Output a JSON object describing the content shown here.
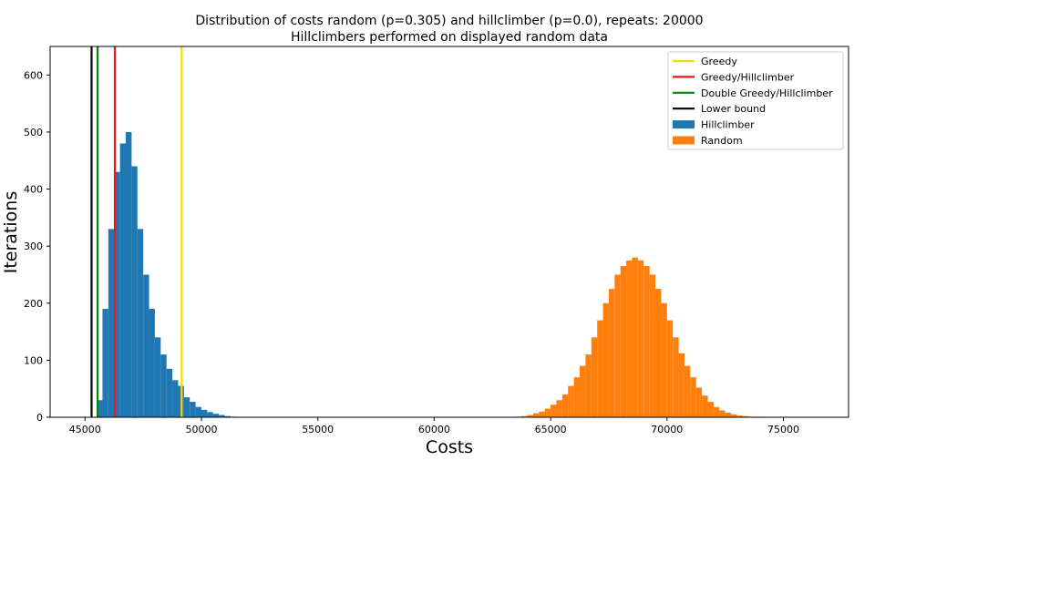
{
  "chart_data": {
    "type": "bar",
    "title": "Distribution of costs random (p=0.305) and hillclimber (p=0.0), repeats: 20000",
    "subtitle": "Hillclimbers performed on displayed random data",
    "xlabel": "Costs",
    "ylabel": "Iterations",
    "xlim": [
      43500,
      77800
    ],
    "ylim": [
      0,
      650
    ],
    "x_ticks": [
      45000,
      50000,
      55000,
      60000,
      65000,
      70000,
      75000
    ],
    "y_ticks": [
      0,
      100,
      200,
      300,
      400,
      500,
      600
    ],
    "grid": false,
    "legend_position": "top-right",
    "vertical_lines": [
      {
        "name": "Greedy",
        "x": 49150,
        "color": "#ffd700"
      },
      {
        "name": "Greedy/Hillclimber",
        "x": 46280,
        "color": "#e8191b"
      },
      {
        "name": "Double Greedy/Hillclimber",
        "x": 45540,
        "color": "#0e800e"
      },
      {
        "name": "Lower bound",
        "x": 45280,
        "color": "#000000"
      }
    ],
    "series": [
      {
        "name": "Hillclimber",
        "color": "#1f77b4",
        "bin_width": 250,
        "x": [
          45625,
          45875,
          46125,
          46375,
          46625,
          46875,
          47125,
          47375,
          47625,
          47875,
          48125,
          48375,
          48625,
          48875,
          49125,
          49375,
          49625,
          49875,
          50125,
          50375,
          50625,
          50875,
          51125,
          51375
        ],
        "values": [
          30,
          190,
          330,
          430,
          480,
          500,
          440,
          330,
          250,
          190,
          140,
          110,
          85,
          65,
          55,
          35,
          27,
          18,
          13,
          9,
          6,
          4,
          2,
          1
        ]
      },
      {
        "name": "Random",
        "color": "#ff7f0e",
        "bin_width": 250,
        "x": [
          63625,
          63875,
          64125,
          64375,
          64625,
          64875,
          65125,
          65375,
          65625,
          65875,
          66125,
          66375,
          66625,
          66875,
          67125,
          67375,
          67625,
          67875,
          68125,
          68375,
          68625,
          68875,
          69125,
          69375,
          69625,
          69875,
          70125,
          70375,
          70625,
          70875,
          71125,
          71375,
          71625,
          71875,
          72125,
          72375,
          72625,
          72875,
          73125,
          73375,
          73625,
          73875,
          74125
        ],
        "values": [
          1,
          2,
          4,
          7,
          10,
          15,
          22,
          30,
          40,
          55,
          70,
          90,
          110,
          140,
          170,
          200,
          225,
          250,
          265,
          275,
          280,
          275,
          265,
          250,
          225,
          200,
          170,
          140,
          112,
          90,
          70,
          52,
          38,
          27,
          18,
          12,
          8,
          5,
          3,
          2,
          1,
          1,
          1
        ]
      }
    ],
    "legend": [
      {
        "label": "Greedy",
        "kind": "line",
        "color": "#ffd700"
      },
      {
        "label": "Greedy/Hillclimber",
        "kind": "line",
        "color": "#e8191b"
      },
      {
        "label": "Double Greedy/Hillclimber",
        "kind": "line",
        "color": "#0e800e"
      },
      {
        "label": "Lower bound",
        "kind": "line",
        "color": "#000000"
      },
      {
        "label": "Hillclimber",
        "kind": "patch",
        "color": "#1f77b4"
      },
      {
        "label": "Random",
        "kind": "patch",
        "color": "#ff7f0e"
      }
    ]
  }
}
